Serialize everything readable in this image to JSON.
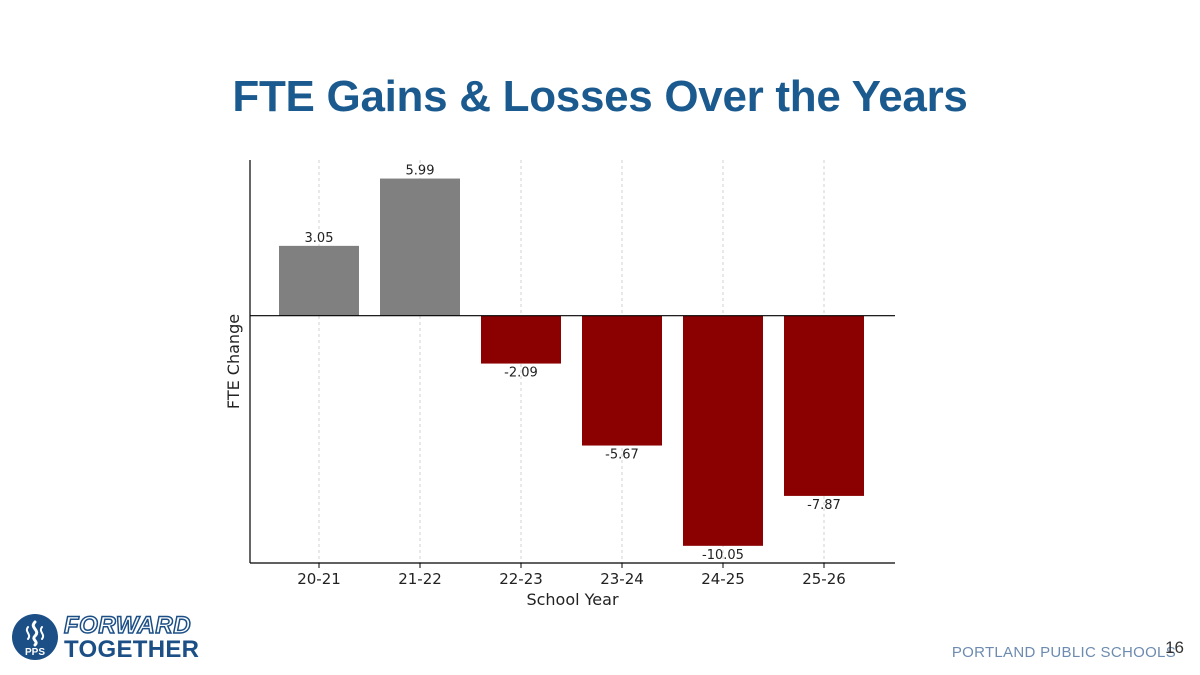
{
  "slide": {
    "title": "FTE Gains & Losses Over the Years",
    "org": "PORTLAND PUBLIC SCHOOLS",
    "page_number": "16"
  },
  "logo": {
    "mark_text": "PPS",
    "line1": "FORWARD",
    "line2": "TOGETHER"
  },
  "colors": {
    "title": "#1b5a8e",
    "gain_bar": "#808080",
    "loss_bar": "#8b0000"
  },
  "chart_data": {
    "type": "bar",
    "title": "FTE Gains & Losses Over the Years",
    "xlabel": "School Year",
    "ylabel": "FTE Change",
    "categories": [
      "20-21",
      "21-22",
      "22-23",
      "23-24",
      "24-25",
      "25-26"
    ],
    "values": [
      3.05,
      5.99,
      -2.09,
      -5.67,
      -10.05,
      -7.87
    ],
    "data_labels": [
      "3.05",
      "5.99",
      "-2.09",
      "-5.67",
      "-10.05",
      "-7.87"
    ],
    "ylim": [
      -10.8,
      6.8
    ],
    "y_ticks_shown": false,
    "grid": "vertical dashed",
    "legend": "none"
  }
}
